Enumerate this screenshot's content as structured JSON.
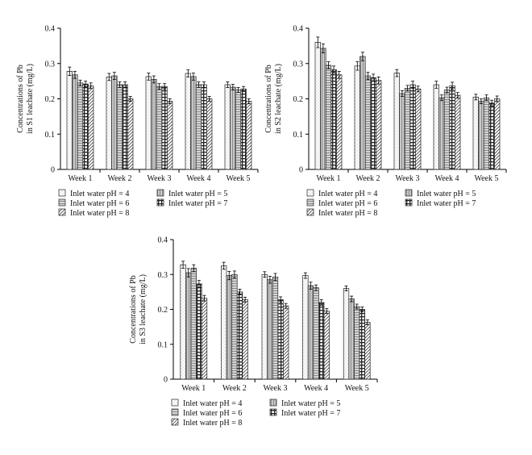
{
  "chart_data": [
    {
      "type": "bar",
      "ylabel": [
        "Concentrations of Pb",
        "in S1 leachate (mg/L)"
      ],
      "ylim": [
        0,
        0.4
      ],
      "yticks": [
        "0",
        "0.1",
        "0.2",
        "0.3",
        "0.4"
      ],
      "categories": [
        "Week 1",
        "Week 2",
        "Week 3",
        "Week 4",
        "Week 5"
      ],
      "series": [
        {
          "name": "Inlet water pH = 4",
          "values": [
            0.278,
            0.262,
            0.263,
            0.272,
            0.24
          ],
          "errors": [
            0.012,
            0.01,
            0.01,
            0.01,
            0.008
          ]
        },
        {
          "name": "Inlet water pH = 5",
          "values": [
            0.268,
            0.265,
            0.255,
            0.263,
            0.233
          ],
          "errors": [
            0.01,
            0.01,
            0.01,
            0.01,
            0.008
          ]
        },
        {
          "name": "Inlet water pH = 6",
          "values": [
            0.245,
            0.24,
            0.235,
            0.24,
            0.225
          ],
          "errors": [
            0.008,
            0.008,
            0.008,
            0.008,
            0.007
          ]
        },
        {
          "name": "Inlet water pH = 7",
          "values": [
            0.242,
            0.24,
            0.235,
            0.24,
            0.228
          ],
          "errors": [
            0.008,
            0.008,
            0.008,
            0.008,
            0.007
          ]
        },
        {
          "name": "Inlet water pH = 8",
          "values": [
            0.237,
            0.2,
            0.193,
            0.2,
            0.193
          ],
          "errors": [
            0.008,
            0.007,
            0.007,
            0.007,
            0.007
          ]
        }
      ]
    },
    {
      "type": "bar",
      "ylabel": [
        "Concentrations of Pb",
        "in S2 leachate (mg/L)"
      ],
      "ylim": [
        0,
        0.4
      ],
      "yticks": [
        "0",
        "0.1",
        "0.2",
        "0.3",
        "0.4"
      ],
      "categories": [
        "Week 1",
        "Week 2",
        "Week 3",
        "Week 4",
        "Week 5"
      ],
      "series": [
        {
          "name": "Inlet water pH = 4",
          "values": [
            0.36,
            0.293,
            0.273,
            0.24,
            0.205
          ],
          "errors": [
            0.015,
            0.012,
            0.01,
            0.01,
            0.008
          ]
        },
        {
          "name": "Inlet water pH = 5",
          "values": [
            0.343,
            0.32,
            0.215,
            0.203,
            0.193
          ],
          "errors": [
            0.013,
            0.012,
            0.008,
            0.008,
            0.007
          ]
        },
        {
          "name": "Inlet water pH = 6",
          "values": [
            0.295,
            0.265,
            0.23,
            0.225,
            0.203
          ],
          "errors": [
            0.01,
            0.01,
            0.008,
            0.008,
            0.008
          ]
        },
        {
          "name": "Inlet water pH = 7",
          "values": [
            0.283,
            0.26,
            0.24,
            0.237,
            0.188
          ],
          "errors": [
            0.01,
            0.01,
            0.01,
            0.01,
            0.008
          ]
        },
        {
          "name": "Inlet water pH = 8",
          "values": [
            0.268,
            0.252,
            0.228,
            0.21,
            0.2
          ],
          "errors": [
            0.01,
            0.01,
            0.008,
            0.008,
            0.008
          ]
        }
      ]
    },
    {
      "type": "bar",
      "ylabel": [
        "Concentrations of Pb",
        "in S3 leachate (mg/L)"
      ],
      "ylim": [
        0,
        0.4
      ],
      "yticks": [
        "0",
        "0.1",
        "0.2",
        "0.3",
        "0.4"
      ],
      "categories": [
        "Week 1",
        "Week 2",
        "Week 3",
        "Week 4",
        "Week 5"
      ],
      "series": [
        {
          "name": "Inlet water pH = 4",
          "values": [
            0.328,
            0.325,
            0.3,
            0.297,
            0.26
          ],
          "errors": [
            0.01,
            0.01,
            0.008,
            0.008,
            0.007
          ]
        },
        {
          "name": "Inlet water pH = 5",
          "values": [
            0.305,
            0.297,
            0.285,
            0.268,
            0.23
          ],
          "errors": [
            0.012,
            0.012,
            0.01,
            0.01,
            0.008
          ]
        },
        {
          "name": "Inlet water pH = 6",
          "values": [
            0.318,
            0.3,
            0.293,
            0.262,
            0.208
          ],
          "errors": [
            0.01,
            0.01,
            0.01,
            0.008,
            0.007
          ]
        },
        {
          "name": "Inlet water pH = 7",
          "values": [
            0.273,
            0.25,
            0.228,
            0.22,
            0.2
          ],
          "errors": [
            0.01,
            0.008,
            0.008,
            0.008,
            0.007
          ]
        },
        {
          "name": "Inlet water pH = 8",
          "values": [
            0.232,
            0.228,
            0.21,
            0.195,
            0.163
          ],
          "errors": [
            0.008,
            0.007,
            0.007,
            0.007,
            0.007
          ]
        }
      ]
    }
  ]
}
